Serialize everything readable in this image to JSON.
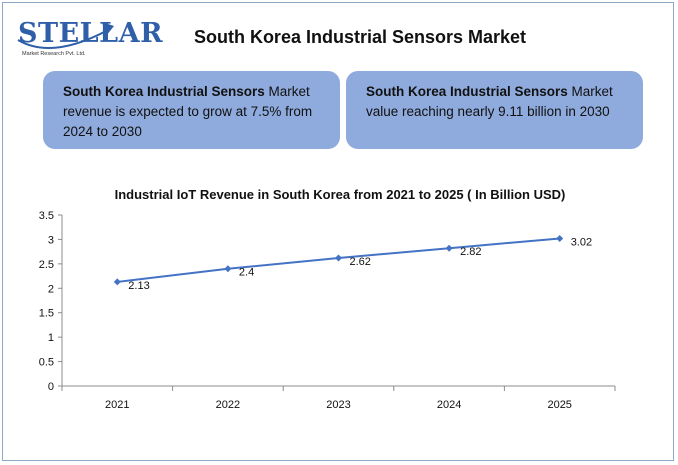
{
  "logo": {
    "text": "STELLAR",
    "subtitle": "Market Research Pvt. Ltd."
  },
  "page_title": "South Korea Industrial Sensors Market",
  "cards": [
    {
      "bold": "South Korea Industrial Sensors",
      "text": " Market revenue is expected to grow at 7.5% from 2024 to 2030"
    },
    {
      "bold": "South Korea Industrial Sensors",
      "text": " Market value reaching nearly 9.11 billion in 2030"
    }
  ],
  "colors": {
    "card_bg": "#8faadc",
    "series_line": "#4472c4",
    "logo_blue": "#2f5fa8"
  },
  "chart_data": {
    "type": "line",
    "title": "Industrial IoT Revenue in South Korea from 2021 to 2025 ( In Billion USD)",
    "categories": [
      "2021",
      "2022",
      "2023",
      "2024",
      "2025"
    ],
    "series": [
      {
        "values": [
          2.13,
          2.4,
          2.62,
          2.82,
          3.02
        ]
      }
    ],
    "data_labels": [
      "2.13",
      "2.4",
      "2.62",
      "2.82",
      "3.02"
    ],
    "ylim": [
      0,
      3.5
    ],
    "yticks": [
      "0",
      "0.5",
      "1",
      "1.5",
      "2",
      "2.5",
      "3",
      "3.5"
    ],
    "grid": false,
    "legend": "none",
    "marker": "diamond"
  }
}
